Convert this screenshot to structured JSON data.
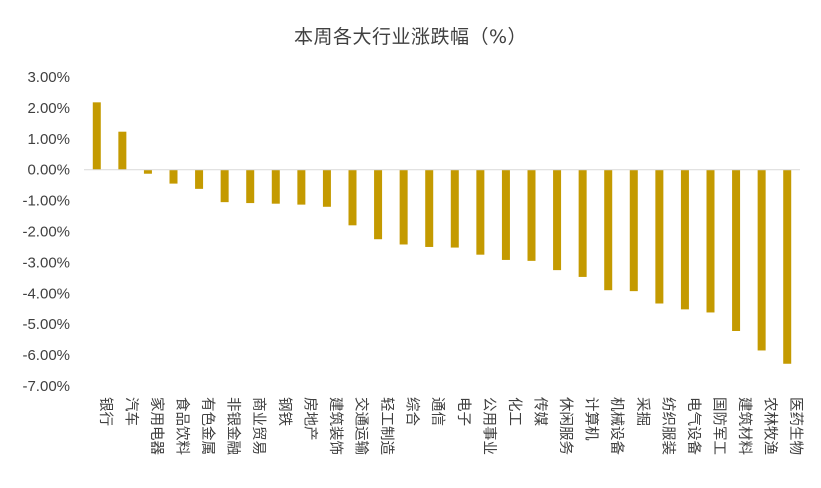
{
  "chart_data": {
    "type": "bar",
    "title": "本周各大行业涨跌幅（%）",
    "xlabel": "",
    "ylabel": "",
    "ylim": [
      -7,
      3
    ],
    "y_ticks": [
      "3.00%",
      "2.00%",
      "1.00%",
      "0.00%",
      "-1.00%",
      "-2.00%",
      "-3.00%",
      "-4.00%",
      "-5.00%",
      "-6.00%",
      "-7.00%"
    ],
    "grid": false,
    "legend": "none",
    "bar_color": "#C49A00",
    "categories": [
      "银行",
      "汽车",
      "家用电器",
      "食品饮料",
      "有色金属",
      "非银金融",
      "商业贸易",
      "钢铁",
      "房地产",
      "建筑装饰",
      "交通运输",
      "轻工制造",
      "综合",
      "通信",
      "电子",
      "公用事业",
      "化工",
      "传媒",
      "休闲服务",
      "计算机",
      "机械设备",
      "采掘",
      "纺织服装",
      "电气设备",
      "国防军工",
      "建筑材料",
      "农林牧渔",
      "医药生物"
    ],
    "values": [
      2.18,
      1.23,
      -0.13,
      -0.45,
      -0.62,
      -1.05,
      -1.08,
      -1.1,
      -1.13,
      -1.2,
      -1.8,
      -2.25,
      -2.42,
      -2.5,
      -2.52,
      -2.75,
      -2.92,
      -2.95,
      -3.25,
      -3.47,
      -3.9,
      -3.93,
      -4.33,
      -4.52,
      -4.62,
      -5.22,
      -5.85,
      -6.28
    ]
  }
}
